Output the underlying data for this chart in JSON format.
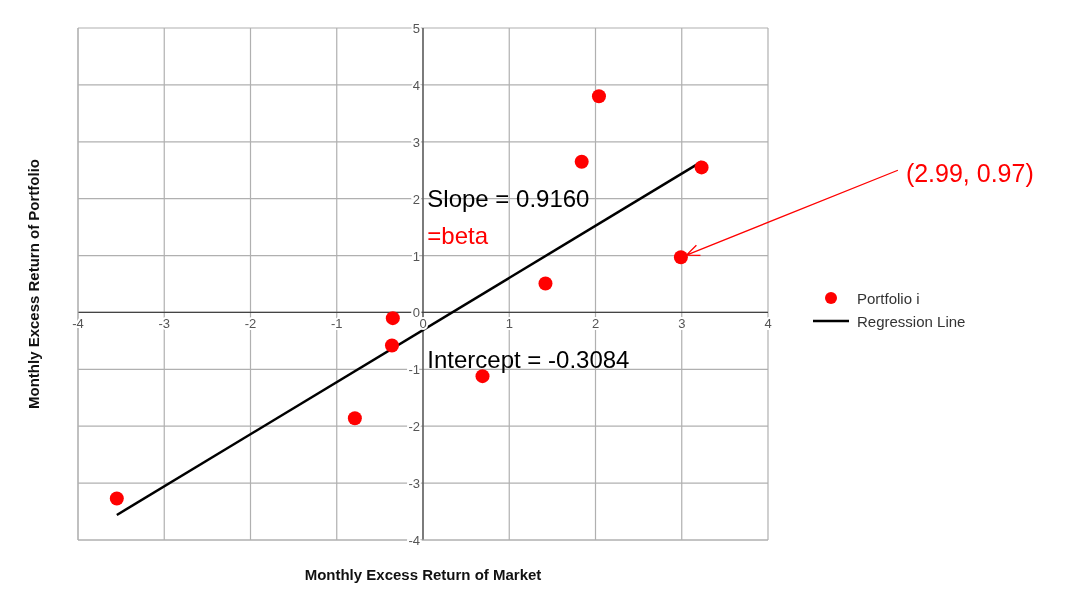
{
  "chart_data": {
    "type": "scatter",
    "xlabel": "Monthly Excess Return of Market",
    "ylabel": "Monthly Excess Return of Portfolio",
    "xlim": [
      -4,
      4
    ],
    "xticks": [
      -4,
      -3,
      -2,
      -1,
      0,
      1,
      2,
      3,
      4
    ],
    "ylim": [
      -4,
      5
    ],
    "yticks": [
      -4,
      -3,
      -2,
      -1,
      0,
      1,
      2,
      3,
      4,
      5
    ],
    "grid": true,
    "legend": "right",
    "series": [
      {
        "name": "Portfolio i",
        "type": "scatter",
        "marker": "circle",
        "color": "#ff0000",
        "x": [
          -3.55,
          -0.79,
          -0.36,
          -0.35,
          0.69,
          1.42,
          1.84,
          2.04,
          2.99,
          3.23
        ],
        "values": [
          -3.27,
          -1.86,
          -0.58,
          -0.1,
          -1.12,
          0.51,
          2.65,
          3.8,
          0.97,
          2.55
        ]
      },
      {
        "name": "Regression Line",
        "type": "line",
        "color": "#000000",
        "x": [
          -3.55,
          3.23
        ],
        "values": [
          -3.56,
          2.65
        ]
      }
    ],
    "annotations": [
      "Slope = 0.9160",
      "=beta",
      "Intercept = -0.3084",
      {
        "text": "(2.99, 0.97)",
        "x": 2.99,
        "y": 0.97
      }
    ]
  }
}
